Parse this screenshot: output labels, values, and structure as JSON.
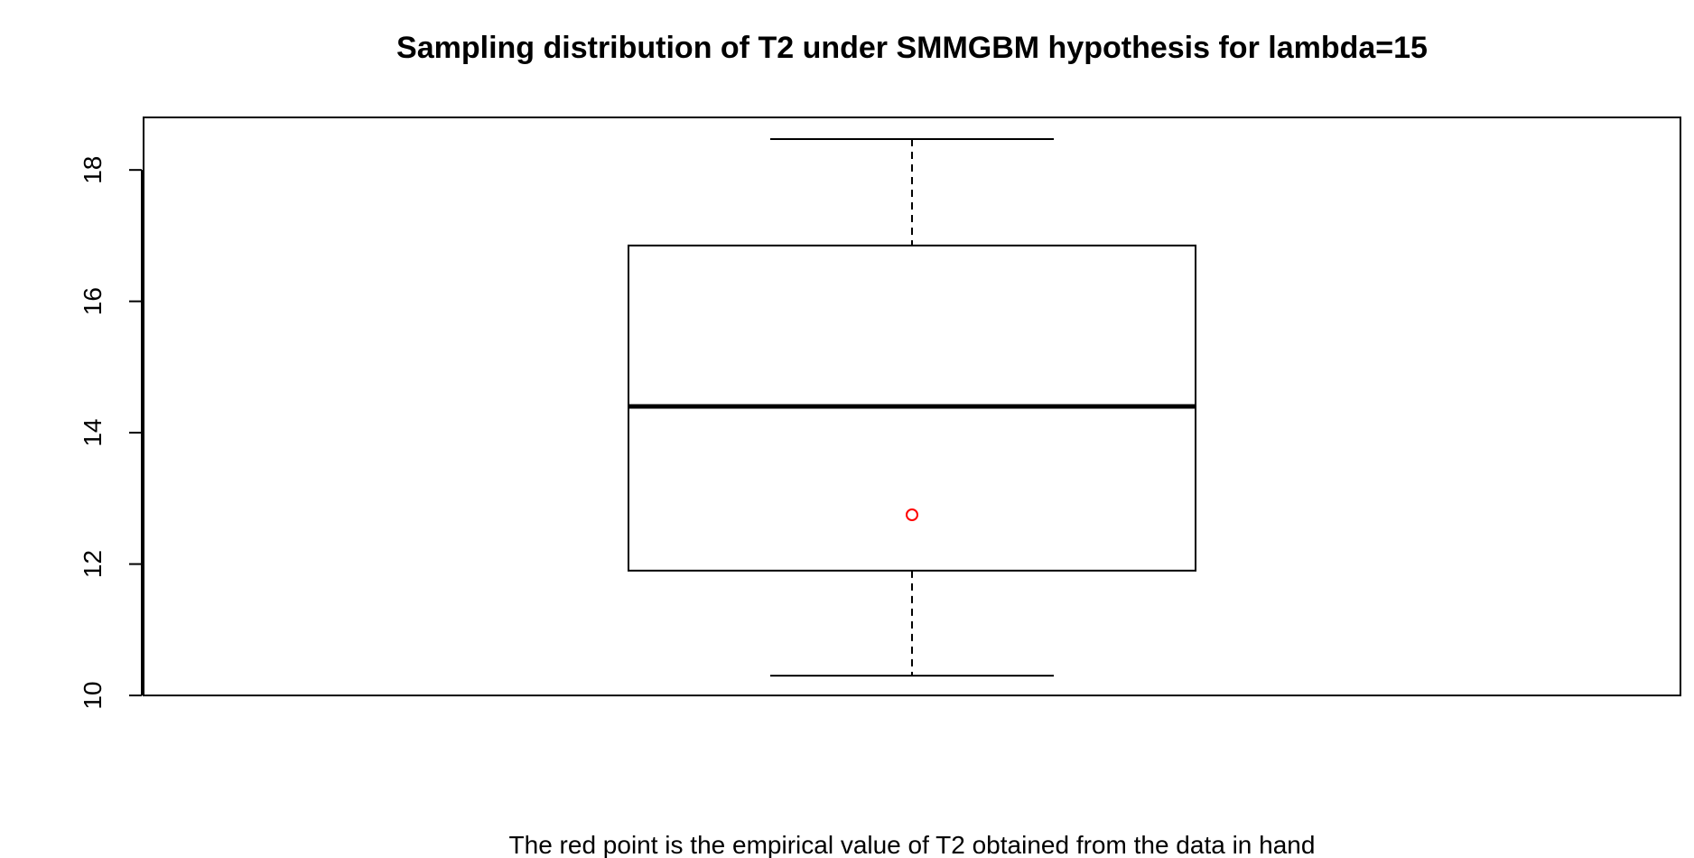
{
  "chart_data": {
    "type": "boxplot",
    "title": "Sampling distribution of T2 under SMMGBM hypothesis for lambda=15",
    "xlabel": "",
    "ylabel": "",
    "ylim": [
      10,
      18.8
    ],
    "y_ticks": [
      10,
      12,
      14,
      16,
      18
    ],
    "y_tick_labels": [
      "10",
      "12",
      "14",
      "16",
      "18"
    ],
    "box": {
      "whisker_low": 10.3,
      "q1": 11.9,
      "median": 14.4,
      "q3": 16.85,
      "whisker_high": 18.47
    },
    "points": [
      {
        "y": 12.75,
        "color": "#ff0000"
      }
    ],
    "grid": false,
    "caption": "The red point is the empirical value of T2 obtained from the data in hand"
  }
}
